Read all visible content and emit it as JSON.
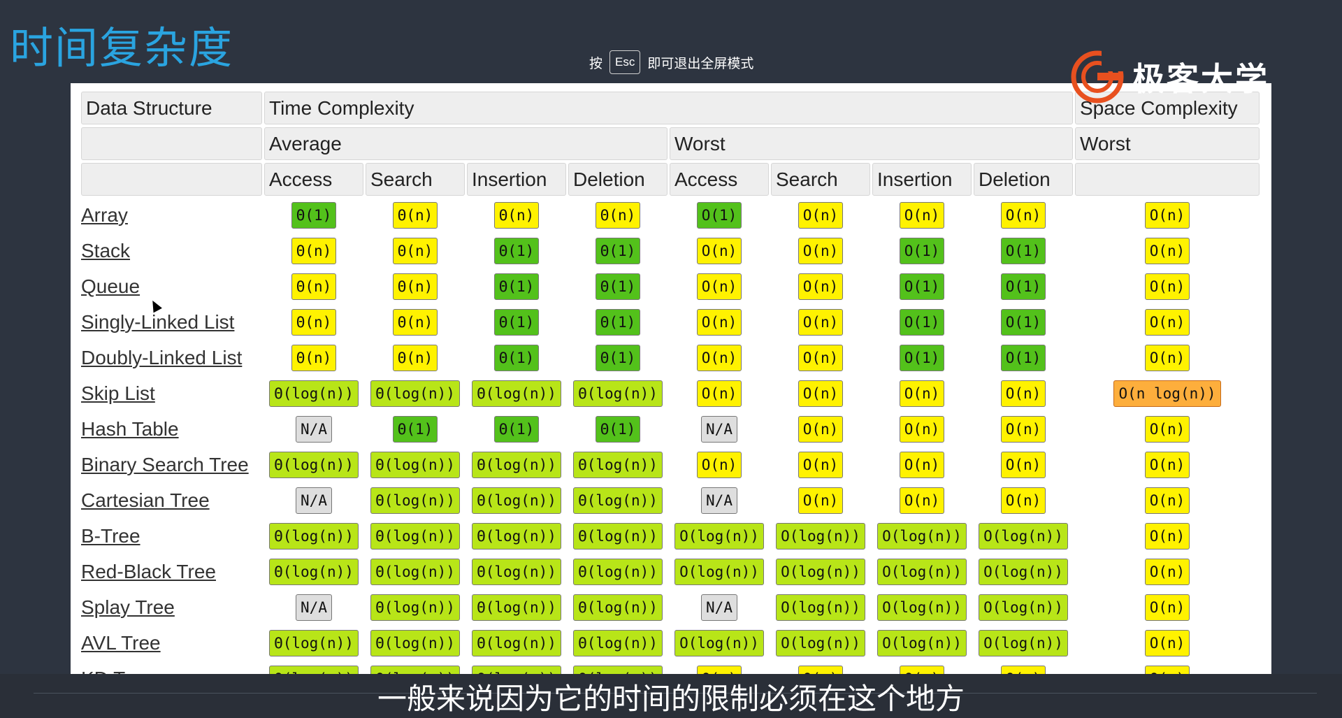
{
  "slide": {
    "title": "时间复杂度",
    "esc_hint": {
      "prefix": "按",
      "key": "Esc",
      "suffix": "即可退出全屏模式"
    },
    "logo_text": "极客大学",
    "subtitle": "一般来说因为它的时间的限制必须在这个地方"
  },
  "colors": {
    "green": "#53c11b",
    "light_green": "#b8e518",
    "yellow": "#fff200",
    "orange": "#fdae3c",
    "gray": "#dedede",
    "title_blue": "#2aa4e0",
    "logo_orange": "#e8501f"
  },
  "table": {
    "header_row1": {
      "data_structure": "Data Structure",
      "time_complexity": "Time Complexity",
      "space_complexity": "Space Complexity"
    },
    "header_row2": {
      "average": "Average",
      "worst": "Worst",
      "space_worst": "Worst"
    },
    "columns": [
      "Access",
      "Search",
      "Insertion",
      "Deletion",
      "Access",
      "Search",
      "Insertion",
      "Deletion"
    ],
    "rows": [
      {
        "name": "Array",
        "cells": [
          [
            "Θ(1)",
            "g"
          ],
          [
            "Θ(n)",
            "y"
          ],
          [
            "Θ(n)",
            "y"
          ],
          [
            "Θ(n)",
            "y"
          ],
          [
            "O(1)",
            "g"
          ],
          [
            "O(n)",
            "y"
          ],
          [
            "O(n)",
            "y"
          ],
          [
            "O(n)",
            "y"
          ],
          [
            "O(n)",
            "y"
          ]
        ]
      },
      {
        "name": "Stack",
        "cells": [
          [
            "Θ(n)",
            "y"
          ],
          [
            "Θ(n)",
            "y"
          ],
          [
            "Θ(1)",
            "g"
          ],
          [
            "Θ(1)",
            "g"
          ],
          [
            "O(n)",
            "y"
          ],
          [
            "O(n)",
            "y"
          ],
          [
            "O(1)",
            "g"
          ],
          [
            "O(1)",
            "g"
          ],
          [
            "O(n)",
            "y"
          ]
        ]
      },
      {
        "name": "Queue",
        "cells": [
          [
            "Θ(n)",
            "y"
          ],
          [
            "Θ(n)",
            "y"
          ],
          [
            "Θ(1)",
            "g"
          ],
          [
            "Θ(1)",
            "g"
          ],
          [
            "O(n)",
            "y"
          ],
          [
            "O(n)",
            "y"
          ],
          [
            "O(1)",
            "g"
          ],
          [
            "O(1)",
            "g"
          ],
          [
            "O(n)",
            "y"
          ]
        ]
      },
      {
        "name": "Singly-Linked List",
        "cells": [
          [
            "Θ(n)",
            "y"
          ],
          [
            "Θ(n)",
            "y"
          ],
          [
            "Θ(1)",
            "g"
          ],
          [
            "Θ(1)",
            "g"
          ],
          [
            "O(n)",
            "y"
          ],
          [
            "O(n)",
            "y"
          ],
          [
            "O(1)",
            "g"
          ],
          [
            "O(1)",
            "g"
          ],
          [
            "O(n)",
            "y"
          ]
        ]
      },
      {
        "name": "Doubly-Linked List",
        "cells": [
          [
            "Θ(n)",
            "y"
          ],
          [
            "Θ(n)",
            "y"
          ],
          [
            "Θ(1)",
            "g"
          ],
          [
            "Θ(1)",
            "g"
          ],
          [
            "O(n)",
            "y"
          ],
          [
            "O(n)",
            "y"
          ],
          [
            "O(1)",
            "g"
          ],
          [
            "O(1)",
            "g"
          ],
          [
            "O(n)",
            "y"
          ]
        ]
      },
      {
        "name": "Skip List",
        "cells": [
          [
            "Θ(log(n))",
            "lg"
          ],
          [
            "Θ(log(n))",
            "lg"
          ],
          [
            "Θ(log(n))",
            "lg"
          ],
          [
            "Θ(log(n))",
            "lg"
          ],
          [
            "O(n)",
            "y"
          ],
          [
            "O(n)",
            "y"
          ],
          [
            "O(n)",
            "y"
          ],
          [
            "O(n)",
            "y"
          ],
          [
            "O(n log(n))",
            "o"
          ]
        ]
      },
      {
        "name": "Hash Table",
        "cells": [
          [
            "N/A",
            "gr"
          ],
          [
            "Θ(1)",
            "g"
          ],
          [
            "Θ(1)",
            "g"
          ],
          [
            "Θ(1)",
            "g"
          ],
          [
            "N/A",
            "gr"
          ],
          [
            "O(n)",
            "y"
          ],
          [
            "O(n)",
            "y"
          ],
          [
            "O(n)",
            "y"
          ],
          [
            "O(n)",
            "y"
          ]
        ]
      },
      {
        "name": "Binary Search Tree",
        "cells": [
          [
            "Θ(log(n))",
            "lg"
          ],
          [
            "Θ(log(n))",
            "lg"
          ],
          [
            "Θ(log(n))",
            "lg"
          ],
          [
            "Θ(log(n))",
            "lg"
          ],
          [
            "O(n)",
            "y"
          ],
          [
            "O(n)",
            "y"
          ],
          [
            "O(n)",
            "y"
          ],
          [
            "O(n)",
            "y"
          ],
          [
            "O(n)",
            "y"
          ]
        ]
      },
      {
        "name": "Cartesian Tree",
        "cells": [
          [
            "N/A",
            "gr"
          ],
          [
            "Θ(log(n))",
            "lg"
          ],
          [
            "Θ(log(n))",
            "lg"
          ],
          [
            "Θ(log(n))",
            "lg"
          ],
          [
            "N/A",
            "gr"
          ],
          [
            "O(n)",
            "y"
          ],
          [
            "O(n)",
            "y"
          ],
          [
            "O(n)",
            "y"
          ],
          [
            "O(n)",
            "y"
          ]
        ]
      },
      {
        "name": "B-Tree",
        "cells": [
          [
            "Θ(log(n))",
            "lg"
          ],
          [
            "Θ(log(n))",
            "lg"
          ],
          [
            "Θ(log(n))",
            "lg"
          ],
          [
            "Θ(log(n))",
            "lg"
          ],
          [
            "O(log(n))",
            "lg"
          ],
          [
            "O(log(n))",
            "lg"
          ],
          [
            "O(log(n))",
            "lg"
          ],
          [
            "O(log(n))",
            "lg"
          ],
          [
            "O(n)",
            "y"
          ]
        ]
      },
      {
        "name": "Red-Black Tree",
        "cells": [
          [
            "Θ(log(n))",
            "lg"
          ],
          [
            "Θ(log(n))",
            "lg"
          ],
          [
            "Θ(log(n))",
            "lg"
          ],
          [
            "Θ(log(n))",
            "lg"
          ],
          [
            "O(log(n))",
            "lg"
          ],
          [
            "O(log(n))",
            "lg"
          ],
          [
            "O(log(n))",
            "lg"
          ],
          [
            "O(log(n))",
            "lg"
          ],
          [
            "O(n)",
            "y"
          ]
        ]
      },
      {
        "name": "Splay Tree",
        "cells": [
          [
            "N/A",
            "gr"
          ],
          [
            "Θ(log(n))",
            "lg"
          ],
          [
            "Θ(log(n))",
            "lg"
          ],
          [
            "Θ(log(n))",
            "lg"
          ],
          [
            "N/A",
            "gr"
          ],
          [
            "O(log(n))",
            "lg"
          ],
          [
            "O(log(n))",
            "lg"
          ],
          [
            "O(log(n))",
            "lg"
          ],
          [
            "O(n)",
            "y"
          ]
        ]
      },
      {
        "name": "AVL Tree",
        "cells": [
          [
            "Θ(log(n))",
            "lg"
          ],
          [
            "Θ(log(n))",
            "lg"
          ],
          [
            "Θ(log(n))",
            "lg"
          ],
          [
            "Θ(log(n))",
            "lg"
          ],
          [
            "O(log(n))",
            "lg"
          ],
          [
            "O(log(n))",
            "lg"
          ],
          [
            "O(log(n))",
            "lg"
          ],
          [
            "O(log(n))",
            "lg"
          ],
          [
            "O(n)",
            "y"
          ]
        ]
      },
      {
        "name": "KD Tree",
        "cells": [
          [
            "Θ(log(n))",
            "lg"
          ],
          [
            "Θ(log(n))",
            "lg"
          ],
          [
            "Θ(log(n))",
            "lg"
          ],
          [
            "Θ(log(n))",
            "lg"
          ],
          [
            "O(n)",
            "y"
          ],
          [
            "O(n)",
            "y"
          ],
          [
            "O(n)",
            "y"
          ],
          [
            "O(n)",
            "y"
          ],
          [
            "O(n)",
            "y"
          ]
        ]
      }
    ]
  }
}
